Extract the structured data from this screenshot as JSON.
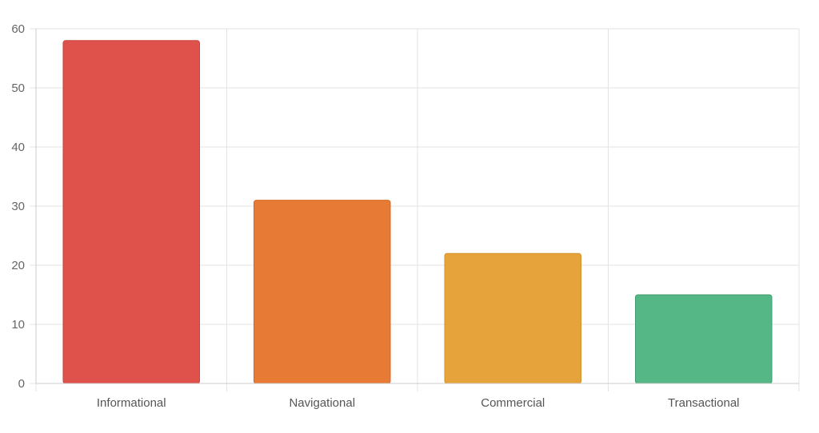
{
  "chart_data": {
    "type": "bar",
    "title": "",
    "xlabel": "",
    "ylabel": "",
    "categories": [
      "Informational",
      "Navigational",
      "Commercial",
      "Transactional"
    ],
    "values": [
      58,
      31,
      22,
      15
    ],
    "ylim": [
      0,
      60
    ],
    "yticks": [
      "0",
      "10",
      "20",
      "30",
      "40",
      "50",
      "60"
    ],
    "grid": true,
    "legend": "none",
    "bar_colors": [
      "#de524b",
      "#e77a34",
      "#e6a33b",
      "#55b785"
    ],
    "bar_border_colors": [
      "#c9433c",
      "#d56a26",
      "#d4922d",
      "#449e70"
    ],
    "grid_color": "#e3e3e3",
    "axis_color": "#cccccc"
  }
}
